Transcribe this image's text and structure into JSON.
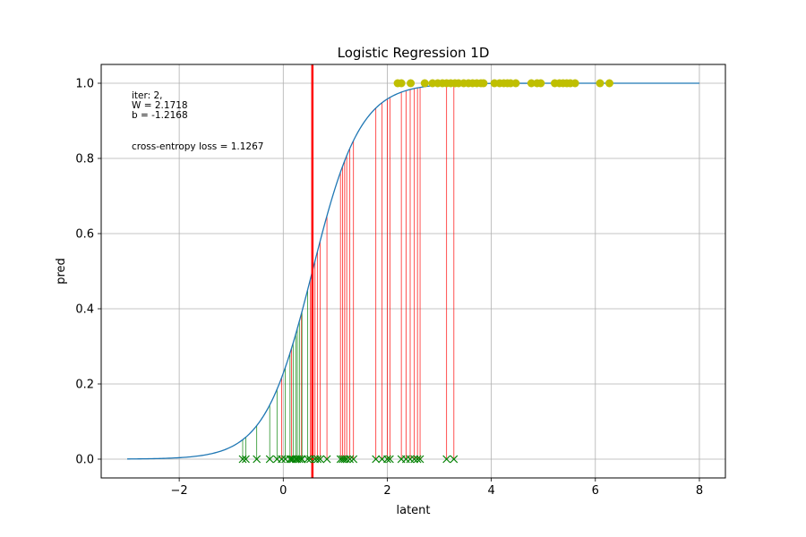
{
  "chart_data": {
    "type": "scatter",
    "title": "Logistic Regression 1D",
    "xlabel": "latent",
    "ylabel": "pred",
    "xlim": [
      -3.5,
      8.5
    ],
    "ylim": [
      -0.05,
      1.05
    ],
    "x_ticks": [
      -2,
      0,
      2,
      4,
      6,
      8
    ],
    "x_tick_labels": [
      "−2",
      "0",
      "2",
      "4",
      "6",
      "8"
    ],
    "y_ticks": [
      0.0,
      0.2,
      0.4,
      0.6,
      0.8,
      1.0
    ],
    "y_tick_labels": [
      "0.0",
      "0.2",
      "0.4",
      "0.6",
      "0.8",
      "1.0"
    ],
    "grid": true,
    "annotations": {
      "iter": "iter: 2,",
      "w": "W = 2.1718",
      "b": "b = -1.2168",
      "loss": "cross-entropy loss = 1.1267"
    },
    "model": {
      "W": 2.1718,
      "b": -1.2168,
      "x_range": [
        -3,
        8
      ]
    },
    "decision_boundary_x": 0.56,
    "colors": {
      "curve": "#1f77b4",
      "boundary": "#ff0000",
      "positive_points": "#bfbf00",
      "negative_points": "#008000",
      "positive_error_lines": "#ff0000",
      "negative_error_lines": "#008000",
      "grid": "#b0b0b0"
    },
    "series": [
      {
        "label": 1,
        "marker": "circle",
        "x": [
          -0.03,
          0.16,
          0.35,
          0.52,
          0.61,
          0.66,
          0.71,
          0.84,
          1.1,
          1.14,
          1.18,
          1.22,
          1.28,
          1.35,
          1.78,
          1.9,
          2.0,
          2.05,
          2.27,
          2.36,
          2.44,
          2.52,
          2.58,
          2.63,
          3.14,
          3.28
        ]
      },
      {
        "label": 1,
        "marker": "circle",
        "x": [
          2.2,
          2.27,
          2.45,
          2.72,
          2.87,
          2.97,
          3.06,
          3.14,
          3.22,
          3.3,
          3.37,
          3.47,
          3.56,
          3.64,
          3.72,
          3.8,
          3.85,
          4.06,
          4.16,
          4.24,
          4.31,
          4.37,
          4.47,
          4.77,
          4.88,
          4.95,
          5.22,
          5.31,
          5.38,
          5.45,
          5.52,
          5.61,
          6.09,
          6.27
        ]
      },
      {
        "label": 0,
        "marker": "x",
        "x": [
          -0.78,
          -0.72,
          -0.51,
          -0.26,
          -0.12,
          0.04,
          0.13,
          0.19,
          0.24,
          0.27,
          0.31,
          0.36,
          0.47
        ]
      }
    ]
  }
}
